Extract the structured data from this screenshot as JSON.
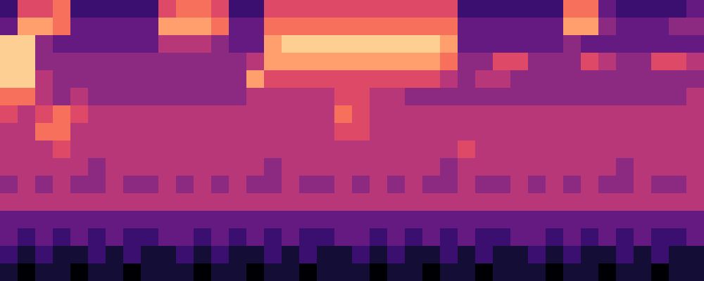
{
  "chart_data": {
    "type": "heatmap",
    "color": "magma",
    "zlim": [
      0,
      10
    ],
    "tick_labels": false,
    "cells": [
      [
        2,
        6,
        6,
        7,
        2,
        2,
        2,
        2,
        2,
        6,
        7,
        7,
        6,
        2,
        2,
        6,
        6,
        6,
        6,
        6,
        6,
        6,
        6,
        6,
        6,
        6,
        2,
        2,
        2,
        2,
        2,
        2,
        7,
        7,
        3,
        2,
        2,
        2,
        2,
        3
      ],
      [
        3,
        8,
        8,
        7,
        3,
        3,
        3,
        3,
        3,
        8,
        8,
        8,
        7,
        3,
        3,
        7,
        7,
        7,
        7,
        7,
        7,
        7,
        7,
        7,
        7,
        7,
        3,
        3,
        3,
        3,
        3,
        3,
        8,
        8,
        4,
        3,
        3,
        3,
        4,
        4
      ],
      [
        9,
        9,
        4,
        3,
        3,
        3,
        3,
        3,
        3,
        5,
        5,
        5,
        4,
        3,
        3,
        8,
        9,
        9,
        9,
        9,
        9,
        9,
        9,
        9,
        9,
        8,
        3,
        3,
        3,
        3,
        3,
        3,
        4,
        3,
        3,
        3,
        3,
        3,
        3,
        3
      ],
      [
        9,
        9,
        4,
        4,
        4,
        4,
        4,
        4,
        4,
        4,
        4,
        4,
        4,
        4,
        5,
        8,
        8,
        8,
        8,
        8,
        8,
        8,
        8,
        8,
        8,
        7,
        4,
        4,
        6,
        6,
        4,
        4,
        4,
        6,
        5,
        4,
        4,
        6,
        6,
        5
      ],
      [
        9,
        9,
        5,
        4,
        4,
        4,
        4,
        4,
        4,
        4,
        4,
        4,
        4,
        4,
        8,
        6,
        6,
        6,
        6,
        6,
        6,
        6,
        6,
        6,
        6,
        5,
        4,
        5,
        5,
        4,
        4,
        4,
        4,
        4,
        4,
        4,
        4,
        4,
        4,
        4
      ],
      [
        7,
        7,
        5,
        4,
        5,
        4,
        4,
        4,
        4,
        4,
        4,
        4,
        4,
        4,
        5,
        5,
        5,
        5,
        5,
        6,
        6,
        5,
        5,
        4,
        4,
        4,
        4,
        4,
        4,
        4,
        4,
        4,
        4,
        4,
        4,
        4,
        4,
        4,
        4,
        5
      ],
      [
        6,
        5,
        6,
        7,
        6,
        5,
        5,
        5,
        5,
        5,
        5,
        5,
        5,
        5,
        5,
        5,
        5,
        5,
        5,
        7,
        6,
        5,
        5,
        5,
        5,
        5,
        5,
        5,
        5,
        5,
        5,
        5,
        5,
        5,
        5,
        5,
        5,
        5,
        5,
        5
      ],
      [
        5,
        5,
        7,
        7,
        5,
        5,
        5,
        5,
        5,
        5,
        5,
        5,
        5,
        5,
        5,
        5,
        5,
        5,
        5,
        6,
        6,
        5,
        5,
        5,
        5,
        5,
        5,
        5,
        5,
        5,
        5,
        5,
        5,
        5,
        5,
        5,
        5,
        5,
        5,
        5
      ],
      [
        5,
        5,
        5,
        6,
        5,
        5,
        5,
        5,
        5,
        5,
        5,
        5,
        5,
        5,
        5,
        5,
        5,
        5,
        5,
        5,
        5,
        5,
        5,
        5,
        5,
        5,
        6,
        5,
        5,
        5,
        5,
        5,
        5,
        5,
        5,
        5,
        5,
        5,
        5,
        5
      ],
      [
        5,
        5,
        5,
        5,
        5,
        4,
        5,
        5,
        5,
        5,
        5,
        5,
        5,
        5,
        5,
        4,
        5,
        5,
        5,
        5,
        5,
        5,
        5,
        5,
        5,
        4,
        5,
        5,
        5,
        5,
        5,
        5,
        5,
        5,
        5,
        4,
        5,
        5,
        5,
        5
      ],
      [
        4,
        5,
        4,
        5,
        4,
        4,
        5,
        4,
        4,
        5,
        4,
        5,
        4,
        5,
        4,
        4,
        5,
        4,
        4,
        5,
        4,
        5,
        4,
        5,
        4,
        4,
        5,
        4,
        4,
        5,
        4,
        5,
        4,
        5,
        4,
        4,
        5,
        4,
        4,
        5
      ],
      [
        5,
        5,
        5,
        5,
        5,
        5,
        5,
        5,
        5,
        5,
        5,
        5,
        5,
        5,
        5,
        5,
        5,
        5,
        5,
        5,
        5,
        5,
        5,
        5,
        5,
        5,
        5,
        5,
        5,
        5,
        5,
        5,
        5,
        5,
        5,
        5,
        5,
        5,
        5,
        5
      ],
      [
        3,
        3,
        3,
        3,
        3,
        3,
        3,
        3,
        3,
        3,
        3,
        3,
        3,
        3,
        3,
        3,
        3,
        3,
        3,
        3,
        3,
        3,
        3,
        3,
        3,
        3,
        3,
        3,
        3,
        3,
        3,
        3,
        3,
        3,
        3,
        3,
        3,
        3,
        3,
        3
      ],
      [
        3,
        2,
        3,
        2,
        3,
        2,
        3,
        2,
        2,
        3,
        3,
        2,
        3,
        2,
        3,
        2,
        3,
        2,
        2,
        3,
        3,
        2,
        3,
        2,
        3,
        2,
        3,
        2,
        2,
        3,
        3,
        2,
        3,
        2,
        3,
        2,
        3,
        2,
        2,
        3
      ],
      [
        2,
        1,
        2,
        1,
        1,
        2,
        1,
        2,
        1,
        1,
        2,
        1,
        2,
        1,
        1,
        2,
        1,
        2,
        1,
        1,
        2,
        1,
        2,
        1,
        1,
        2,
        1,
        2,
        1,
        1,
        2,
        1,
        2,
        1,
        1,
        2,
        1,
        2,
        1,
        1
      ],
      [
        1,
        0,
        1,
        1,
        0,
        1,
        1,
        0,
        1,
        1,
        1,
        0,
        1,
        1,
        0,
        1,
        1,
        0,
        1,
        1,
        1,
        0,
        1,
        1,
        0,
        1,
        1,
        0,
        1,
        1,
        1,
        0,
        1,
        1,
        0,
        1,
        1,
        0,
        1,
        1
      ]
    ]
  }
}
